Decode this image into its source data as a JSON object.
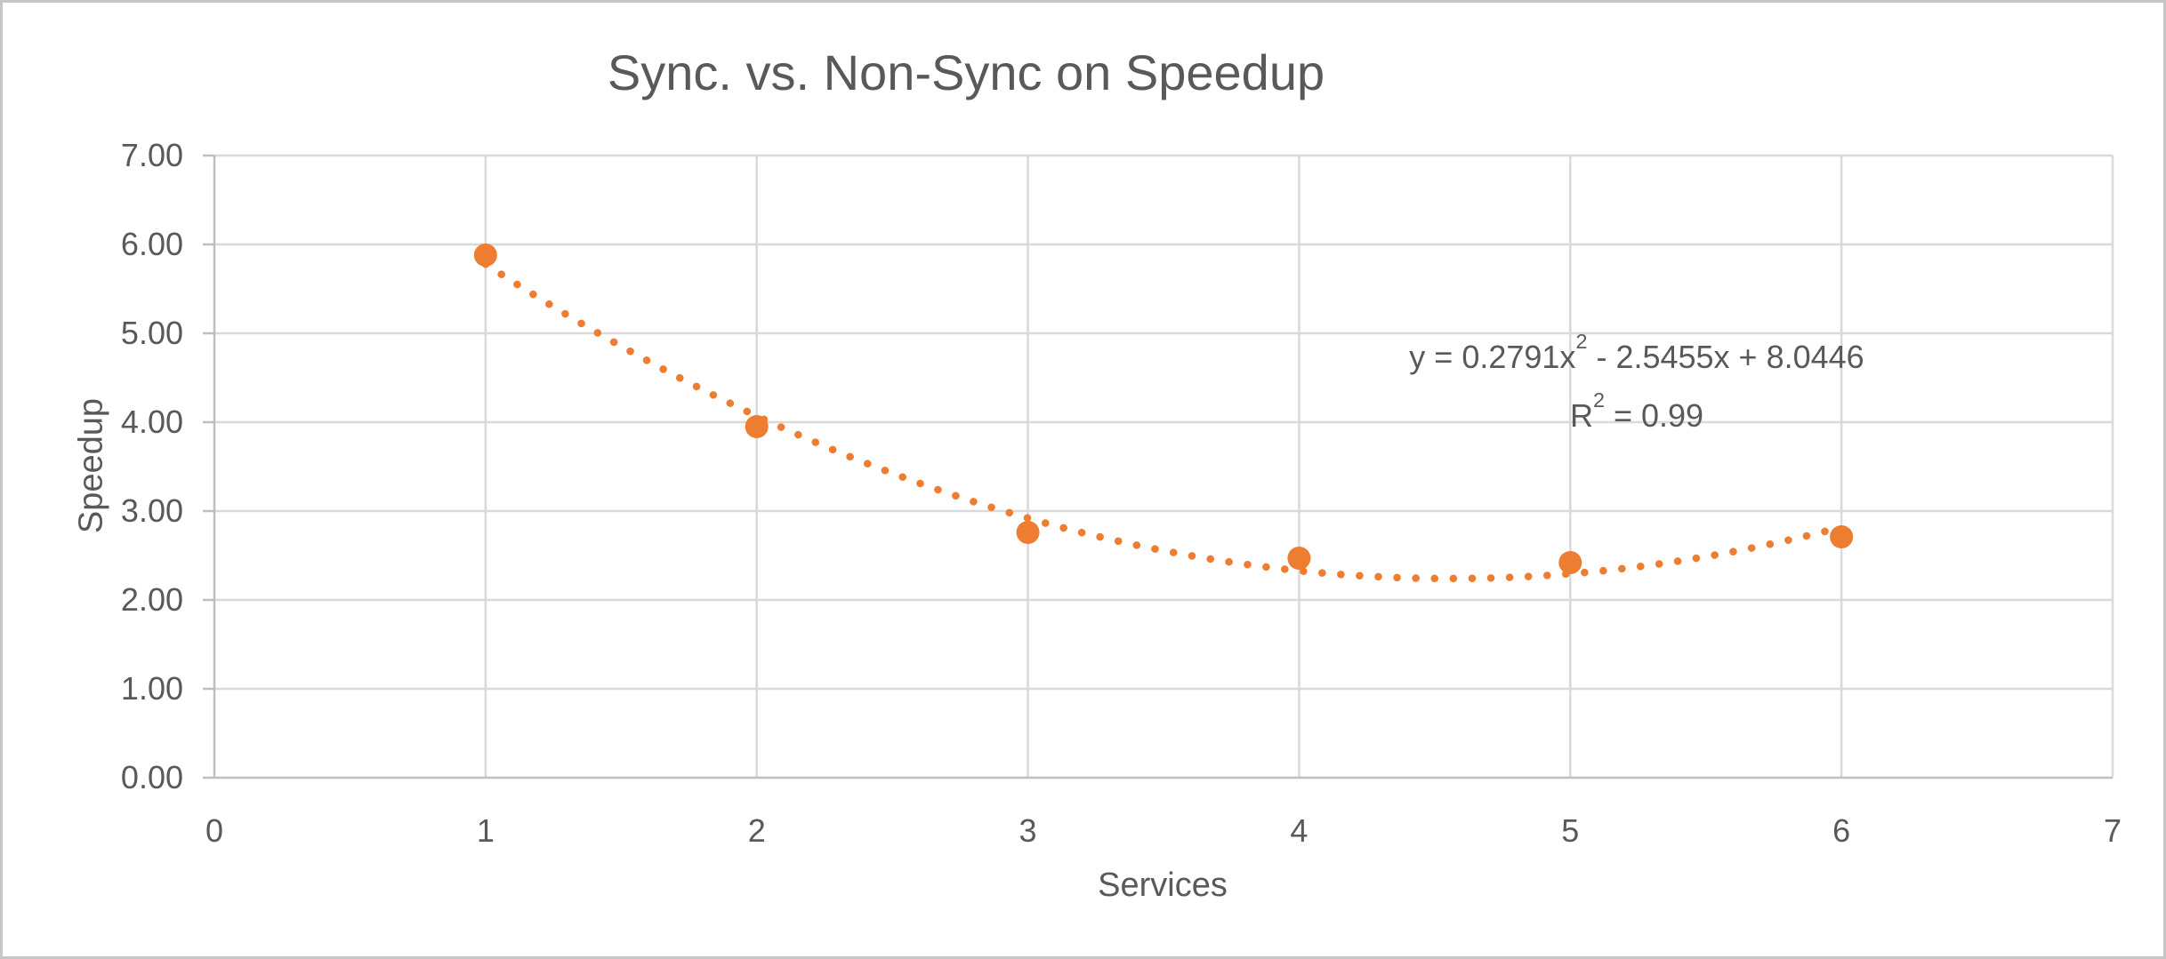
{
  "window": {
    "background": "#ffffff",
    "border_color": "#c6c6c6"
  },
  "chart_data": {
    "type": "scatter",
    "title": "Sync. vs. Non-Sync on Speedup",
    "xlabel": "Services",
    "ylabel": "Speedup",
    "x": [
      1,
      2,
      3,
      4,
      5,
      6
    ],
    "y": [
      5.88,
      3.95,
      2.76,
      2.47,
      2.42,
      2.71
    ],
    "xlim": [
      0,
      7
    ],
    "ylim": [
      0,
      7
    ],
    "x_ticks": [
      "0",
      "1",
      "2",
      "3",
      "4",
      "5",
      "6",
      "7"
    ],
    "y_ticks": [
      "0.00",
      "1.00",
      "2.00",
      "3.00",
      "4.00",
      "5.00",
      "6.00",
      "7.00"
    ],
    "grid": true,
    "legend": "none",
    "marker_color": "#ED7D31",
    "trendline": {
      "type": "polynomial",
      "order": 2,
      "a": 0.2791,
      "b": -2.5455,
      "c": 8.0446,
      "x_start": 1,
      "x_end": 6,
      "style": "dotted",
      "color": "#ED7D31",
      "r_squared": 0.99,
      "equation_prefix": "y = 0.2791x",
      "equation_exponent": "2",
      "equation_suffix": " - 2.5455x + 8.0446",
      "r2_prefix": "R",
      "r2_exponent": "2",
      "r2_suffix": " = 0.99"
    },
    "colors": {
      "gridline": "#D9D9D9",
      "axis": "#BFBFBF",
      "text": "#595959",
      "accent": "#ED7D31"
    }
  }
}
